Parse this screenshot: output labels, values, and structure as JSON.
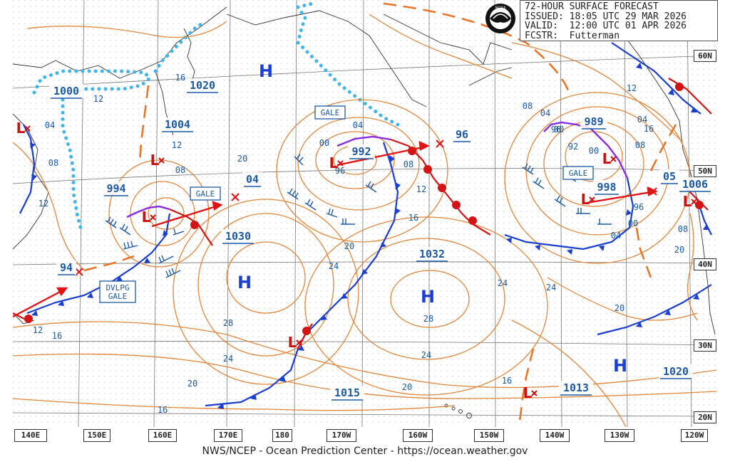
{
  "header": {
    "title": "72-HOUR SURFACE FORECAST",
    "issued": "ISSUED: 18:05 UTC 29 MAR 2026",
    "valid": "VALID:  12:00 UTC 01 APR 2026",
    "forecaster": "FCSTR:  Futterman"
  },
  "logo": {
    "label": "NOAA"
  },
  "footer": {
    "credit": "NWS/NCEP - Ocean Prediction Center - https://ocean.weather.gov"
  },
  "longitude_labels": [
    "140E",
    "150E",
    "160E",
    "170E",
    "180",
    "170W",
    "160W",
    "150W",
    "140W",
    "130W",
    "120W"
  ],
  "latitude_labels": [
    "60N",
    "50N",
    "40N",
    "30N",
    "20N"
  ],
  "pressure_centers": [
    {
      "type": "H",
      "value": "1020"
    },
    {
      "type": "H",
      "value": "1030"
    },
    {
      "type": "H",
      "value": "1032"
    },
    {
      "type": "H",
      "value": "1020"
    },
    {
      "type": "L",
      "value": "1000"
    },
    {
      "type": "L",
      "value": "1004"
    },
    {
      "type": "L",
      "value": "994"
    },
    {
      "type": "L",
      "value": "992"
    },
    {
      "type": "L",
      "value": "989"
    },
    {
      "type": "L",
      "value": "998"
    },
    {
      "type": "L",
      "value": "1006"
    },
    {
      "type": "L",
      "value": "1015"
    },
    {
      "type": "L",
      "value": "1013"
    }
  ],
  "boxed_labels": [
    "1000",
    "1004",
    "994",
    "1020",
    "04",
    "1030",
    "992",
    "96",
    "1032",
    "989",
    "998",
    "1006",
    "05",
    "1015",
    "1013",
    "1020",
    "94"
  ],
  "warnings": [
    "GALE",
    "GALE",
    "GALE",
    "DVLPG\nGALE"
  ],
  "isobar_labels": [
    "12",
    "04",
    "08",
    "12",
    "16",
    "12",
    "16",
    "08",
    "12",
    "20",
    "24",
    "28",
    "24",
    "20",
    "16",
    "00",
    "04",
    "08",
    "96",
    "12",
    "16",
    "20",
    "24",
    "28",
    "24",
    "20",
    "08",
    "04",
    "00",
    "96",
    "92",
    "00",
    "04",
    "08",
    "12",
    "16",
    "20",
    "24",
    "20",
    "16",
    "12",
    "08",
    "00",
    "96",
    "04",
    "12"
  ]
}
